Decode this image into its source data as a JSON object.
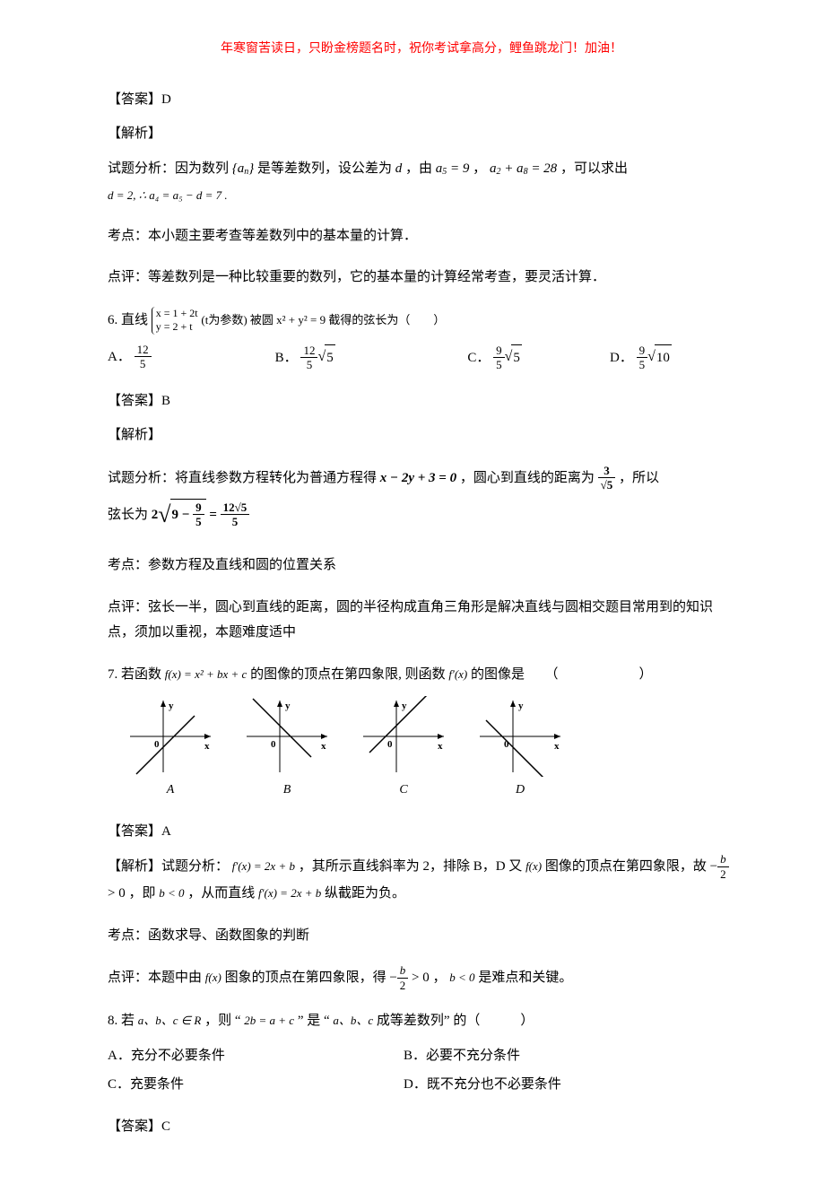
{
  "header_note": "年寒窗苦读日，只盼金榜题名时，祝你考试拿高分，鲤鱼跳龙门！加油！",
  "q5": {
    "answer_label": "【答案】D",
    "jiexi_label": "【解析】",
    "analysis_prefix": "试题分析：因为数列",
    "analysis_mid1": "是等差数列，设公差为",
    "analysis_mid2": "，由",
    "analysis_mid3": "，",
    "analysis_mid4": "，可以求出",
    "deriv": "d = 2, ∴ a₄ = a₅ − d = 7 .",
    "kaodian": "考点：本小题主要考查等差数列中的基本量的计算．",
    "dianping": "点评：等差数列是一种比较重要的数列，它的基本量的计算经常考查，要灵活计算．"
  },
  "q6": {
    "stem_prefix": "6. 直线",
    "param_top": "x = 1 + 2t",
    "param_bot": "y = 2 + t",
    "stem_mid": "(t为参数) 被圆 x² + y² = 9 截得的弦长为（　　）",
    "optA_label": "A．",
    "optA_num": "12",
    "optA_den": "5",
    "optB_label": "B．",
    "optB_num": "12",
    "optB_den": "5",
    "optB_rad": "5",
    "optC_label": "C．",
    "optC_num": "9",
    "optC_den": "5",
    "optC_rad": "5",
    "optD_label": "D．",
    "optD_num": "9",
    "optD_den": "5",
    "optD_rad": "10",
    "answer_label": "【答案】B",
    "jiexi_label": "【解析】",
    "analysis_a": "试题分析：将直线参数方程转化为普通方程得",
    "eq1": "x − 2y + 3 = 0",
    "analysis_b": "，圆心到直线的距离为",
    "dist_num": "3",
    "dist_den": "√5",
    "analysis_c": "，所以",
    "analysis_d": "弦长为",
    "res_outer": "2",
    "res_inner_a": "9 −",
    "res_inner_num": "9",
    "res_inner_den": "5",
    "res_eq": "=",
    "res_rhs_num": "12√5",
    "res_rhs_den": "5",
    "kaodian": "考点：参数方程及直线和圆的位置关系",
    "dianping": "点评：弦长一半，圆心到直线的距离，圆的半径构成直角三角形是解决直线与圆相交题目常用到的知识点，须加以重视，本题难度适中"
  },
  "q7": {
    "stem_a": "7. 若函数",
    "fx": "f(x) = x² + bx + c",
    "stem_b": "的图像的顶点在第四象限, 则函数",
    "fpx": "f′(x)",
    "stem_c": "的图像是　　（　　　　　　）",
    "labels": [
      "A",
      "B",
      "C",
      "D"
    ],
    "graph_slope": [
      1,
      -1,
      1,
      -1
    ],
    "graph_intercept_sign": [
      -1,
      1,
      1,
      -1
    ],
    "axis_color": "#000000",
    "line_color": "#000000",
    "answer_label": "【答案】A",
    "jiexi_prefix": "【解析】试题分析：",
    "deriv": "f′(x) = 2x + b",
    "analysis_a": "，其所示直线斜率为 2，排除 B，D 又",
    "analysis_b": "图像的顶点在第四象限，故",
    "vertex_num": "b",
    "vertex_den": "2",
    "analysis_c": "，即",
    "bcond": "b < 0",
    "analysis_d": "，从而直线",
    "analysis_e": "纵截距为负。",
    "kaodian": "考点：函数求导、函数图象的判断",
    "dianping_a": "点评：本题中由",
    "dianping_b": "图象的顶点在第四象限，得",
    "dianping_c": "，",
    "dianping_d": "是难点和关键。"
  },
  "q8": {
    "stem_a": "8. 若",
    "abc": "a、b、c ∈ R",
    "stem_b": "，则 “",
    "cond": "2b = a + c",
    "stem_c": "” 是 “",
    "seq": "a、b、c",
    "stem_d": "成等差数列” 的（　　　）",
    "optA": "A．充分不必要条件",
    "optB": "B．必要不充分条件",
    "optC": "C．充要条件",
    "optD": "D．既不充分也不必要条件",
    "answer_label": "【答案】C"
  }
}
